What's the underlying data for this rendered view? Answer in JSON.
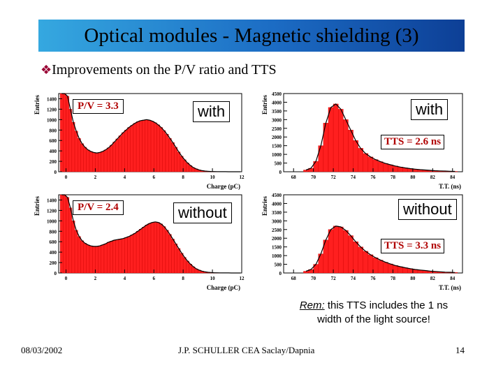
{
  "title": "Optical modules - Magnetic shielding (3)",
  "subtitle": "Improvements on the P/V ratio and TTS",
  "bullet_icon": "diamond-bullet-icon",
  "remark": {
    "prefix": "Rem:",
    "text": " this TTS includes the 1 ns width of the light source!"
  },
  "footer": {
    "date": "08/03/2002",
    "author": "J.P. SCHULLER CEA Saclay/Dapnia",
    "page": "14"
  },
  "colors": {
    "bars": "#ff1f1f",
    "pv_text": "#b00000"
  },
  "chart_data": [
    {
      "type": "bar",
      "title": "with",
      "annotation": "P/V = 3.3",
      "xlabel": "Charge (pC)",
      "ylabel": "Entries",
      "xlim": [
        -0.5,
        12
      ],
      "ylim": [
        0,
        1500
      ],
      "xticks": [
        0,
        2,
        4,
        6,
        8,
        10,
        12
      ],
      "yticks": [
        0,
        200,
        400,
        600,
        800,
        1000,
        1200,
        1400
      ],
      "x": [
        -0.4,
        -0.2,
        0,
        0.2,
        0.4,
        0.6,
        0.8,
        1,
        1.2,
        1.4,
        1.6,
        1.8,
        2,
        2.2,
        2.4,
        2.6,
        2.8,
        3,
        3.2,
        3.4,
        3.6,
        3.8,
        4,
        4.2,
        4.4,
        4.6,
        4.8,
        5,
        5.2,
        5.4,
        5.6,
        5.8,
        6,
        6.2,
        6.4,
        6.6,
        6.8,
        7,
        7.2,
        7.4,
        7.6,
        7.8,
        8,
        8.2,
        8.4,
        8.6,
        8.8,
        9,
        9.2,
        9.4,
        9.6,
        9.8,
        10,
        10.2,
        10.4,
        10.6,
        10.8,
        11,
        11.2,
        11.4,
        11.6,
        11.8
      ],
      "values": [
        1500,
        1500,
        1450,
        1200,
        950,
        780,
        640,
        540,
        470,
        420,
        390,
        370,
        360,
        370,
        390,
        420,
        460,
        510,
        570,
        630,
        690,
        750,
        800,
        850,
        890,
        930,
        960,
        980,
        990,
        1000,
        990,
        970,
        940,
        900,
        850,
        790,
        720,
        640,
        560,
        470,
        380,
        300,
        230,
        170,
        120,
        80,
        55,
        35,
        22,
        14,
        9,
        6,
        4,
        3,
        2,
        1,
        1,
        0,
        0,
        0,
        0,
        0
      ]
    },
    {
      "type": "bar",
      "title": "with",
      "annotation": "TTS = 2.6 ns",
      "xlabel": "T.T. (ns)",
      "ylabel": "Entries",
      "xlim": [
        67,
        85
      ],
      "ylim": [
        0,
        4500
      ],
      "xticks": [
        68,
        70,
        72,
        74,
        76,
        78,
        80,
        82,
        84
      ],
      "yticks": [
        0,
        500,
        1000,
        1500,
        2000,
        2500,
        3000,
        3500,
        4000,
        4500
      ],
      "x": [
        69,
        69.5,
        70,
        70.5,
        71,
        71.5,
        72,
        72.5,
        73,
        73.5,
        74,
        74.5,
        75,
        75.5,
        76,
        76.5,
        77,
        77.5,
        78,
        78.5,
        79,
        79.5,
        80,
        80.5,
        81,
        81.5,
        82,
        82.5,
        83,
        83.5,
        84
      ],
      "values": [
        100,
        200,
        600,
        1500,
        2800,
        3700,
        3900,
        3600,
        3000,
        2400,
        1800,
        1350,
        1050,
        850,
        700,
        580,
        480,
        400,
        330,
        270,
        220,
        180,
        150,
        120,
        100,
        80,
        60,
        50,
        40,
        30,
        20
      ]
    },
    {
      "type": "bar",
      "title": "without",
      "annotation": "P/V = 2.4",
      "xlabel": "Charge (pC)",
      "ylabel": "Entries",
      "xlim": [
        -0.5,
        12
      ],
      "ylim": [
        0,
        1500
      ],
      "xticks": [
        0,
        2,
        4,
        6,
        8,
        10,
        12
      ],
      "yticks": [
        0,
        200,
        400,
        600,
        800,
        1000,
        1200,
        1400
      ],
      "x": [
        -0.4,
        -0.2,
        0,
        0.2,
        0.4,
        0.6,
        0.8,
        1,
        1.2,
        1.4,
        1.6,
        1.8,
        2,
        2.2,
        2.4,
        2.6,
        2.8,
        3,
        3.2,
        3.4,
        3.6,
        3.8,
        4,
        4.2,
        4.4,
        4.6,
        4.8,
        5,
        5.2,
        5.4,
        5.6,
        5.8,
        6,
        6.2,
        6.4,
        6.6,
        6.8,
        7,
        7.2,
        7.4,
        7.6,
        7.8,
        8,
        8.2,
        8.4,
        8.6,
        8.8,
        9,
        9.2,
        9.4,
        9.6,
        9.8,
        10,
        10.2,
        10.4,
        10.6,
        10.8,
        11,
        11.2,
        11.4,
        11.6,
        11.8
      ],
      "values": [
        1500,
        1500,
        1450,
        1250,
        1000,
        820,
        700,
        620,
        570,
        540,
        520,
        510,
        510,
        520,
        540,
        560,
        590,
        610,
        630,
        640,
        650,
        660,
        680,
        700,
        730,
        760,
        800,
        840,
        880,
        920,
        950,
        970,
        980,
        970,
        940,
        890,
        820,
        740,
        650,
        560,
        470,
        380,
        300,
        230,
        170,
        120,
        80,
        55,
        35,
        22,
        14,
        9,
        6,
        4,
        3,
        2,
        1,
        1,
        0,
        0,
        0,
        0
      ]
    },
    {
      "type": "bar",
      "title": "without",
      "annotation": "TTS = 3.3 ns",
      "xlabel": "T.T. (ns)",
      "ylabel": "Entries",
      "xlim": [
        67,
        85
      ],
      "ylim": [
        0,
        4500
      ],
      "xticks": [
        68,
        70,
        72,
        74,
        76,
        78,
        80,
        82,
        84
      ],
      "yticks": [
        0,
        500,
        1000,
        1500,
        2000,
        2500,
        3000,
        3500,
        4000,
        4500
      ],
      "x": [
        69,
        69.5,
        70,
        70.5,
        71,
        71.5,
        72,
        72.5,
        73,
        73.5,
        74,
        74.5,
        75,
        75.5,
        76,
        76.5,
        77,
        77.5,
        78,
        78.5,
        79,
        79.5,
        80,
        80.5,
        81,
        81.5,
        82,
        82.5,
        83,
        83.5,
        84
      ],
      "values": [
        100,
        200,
        500,
        1100,
        1900,
        2500,
        2700,
        2650,
        2450,
        2150,
        1800,
        1500,
        1250,
        1050,
        880,
        740,
        620,
        520,
        430,
        360,
        300,
        250,
        200,
        170,
        140,
        110,
        90,
        70,
        50,
        40,
        30
      ]
    }
  ]
}
